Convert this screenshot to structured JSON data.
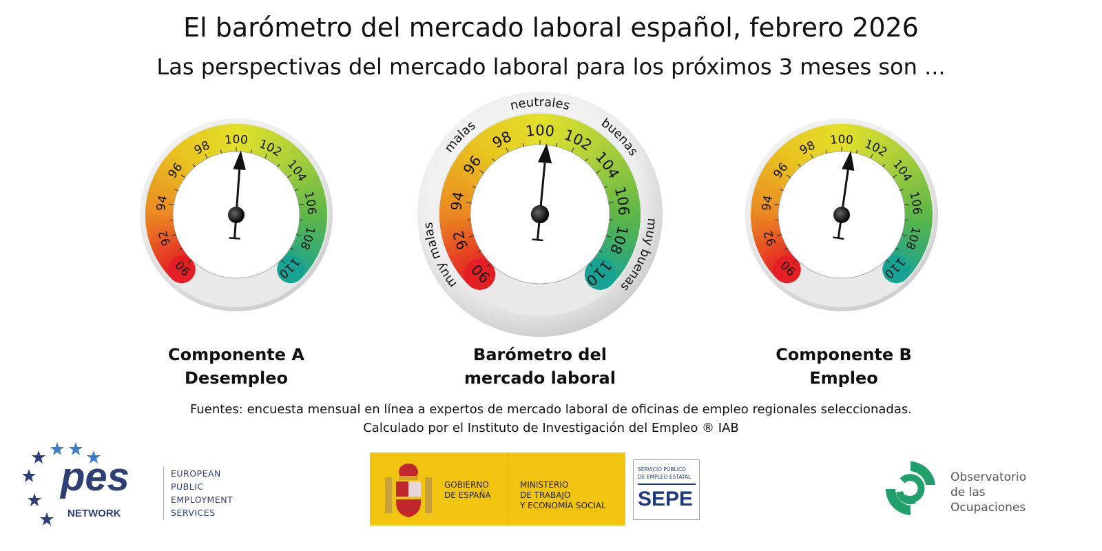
{
  "header": {
    "title": "El barómetro del mercado laboral español, febrero 2026",
    "subtitle": "Las perspectivas del mercado laboral para los próximos 3 meses son ..."
  },
  "chart_data": [
    {
      "type": "gauge",
      "title_lines": [
        "Componente A",
        "Desempleo"
      ],
      "min": 90,
      "max": 110,
      "tick_labels": [
        "90",
        "92",
        "94",
        "96",
        "98",
        "100",
        "102",
        "104",
        "106",
        "108",
        "110"
      ],
      "value": 100.3
    },
    {
      "type": "gauge",
      "title_lines": [
        "Barómetro del",
        "mercado laboral"
      ],
      "min": 90,
      "max": 110,
      "tick_labels": [
        "90",
        "92",
        "94",
        "96",
        "98",
        "100",
        "102",
        "104",
        "106",
        "108",
        "110"
      ],
      "value": 100.4,
      "zones": [
        "muy malas",
        "malas",
        "neutrales",
        "buenas",
        "muy buenas"
      ]
    },
    {
      "type": "gauge",
      "title_lines": [
        "Componente B",
        "Empleo"
      ],
      "min": 90,
      "max": 110,
      "tick_labels": [
        "90",
        "92",
        "94",
        "96",
        "98",
        "100",
        "102",
        "104",
        "106",
        "108",
        "110"
      ],
      "value": 100.6
    }
  ],
  "colors": {
    "scale": [
      "#e31e24",
      "#eb8a22",
      "#e8c21e",
      "#e3e02a",
      "#a8cf3a",
      "#5db648",
      "#17a294"
    ],
    "needle": "#111111"
  },
  "sources": {
    "line1": "Fuentes: encuesta mensual en línea a expertos de mercado laboral de oficinas de empleo regionales seleccionadas.",
    "line2": "Calculado por el Instituto de Investigación del Empleo ® IAB"
  },
  "logos": {
    "pes": {
      "mark": "pes",
      "network": "NETWORK",
      "lines": [
        "EUROPEAN",
        "PUBLIC",
        "EMPLOYMENT",
        "SERVICES"
      ]
    },
    "gobierno": {
      "line1": [
        "GOBIERNO",
        "DE ESPAÑA"
      ],
      "line2": [
        "MINISTERIO",
        "DE TRABAJO",
        "Y ECONOMÍA SOCIAL"
      ]
    },
    "sepe": {
      "small": [
        "SERVICIO PÚBLICO",
        "DE EMPLEO ESTATAL"
      ],
      "big": "SEPE"
    },
    "observatorio": {
      "lines": [
        "Observatorio",
        "de las",
        "Ocupaciones"
      ]
    }
  }
}
